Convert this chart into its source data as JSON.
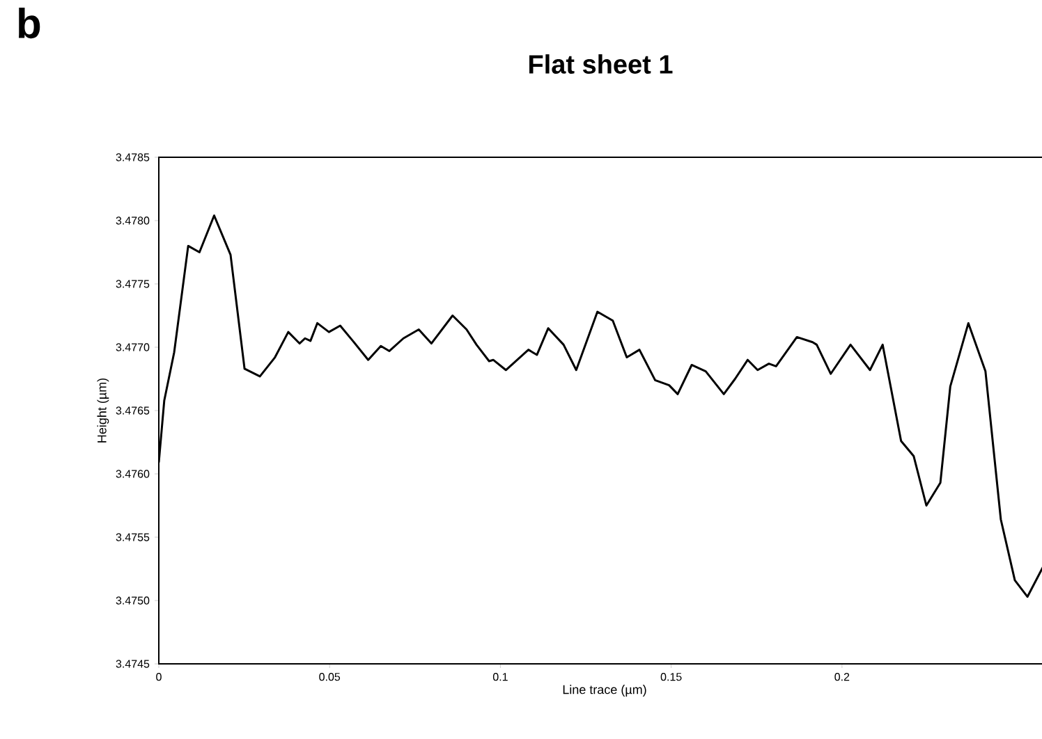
{
  "chart_data": {
    "type": "line",
    "title": "Flat sheet 1",
    "xlabel": "Line trace (µm)",
    "ylabel": "Height  (µm)",
    "annotations": [
      "b"
    ],
    "xlim": [
      0,
      0.261
    ],
    "xticks": [
      0,
      0.05,
      0.1,
      0.15,
      0.2
    ],
    "ylim": [
      3.4745,
      3.4785
    ],
    "yticks": [
      3.4745,
      {
        "value": 3.475,
        "label": "3.4750"
      },
      3.4755,
      {
        "value": 3.476,
        "label": "3.4760"
      },
      3.4765,
      {
        "value": 3.477,
        "label": "3.4770"
      },
      3.4775,
      {
        "value": 3.478,
        "label": "3.4780"
      },
      3.4785
    ],
    "series": [
      {
        "color": "#000000",
        "x": [
          0,
          0.0016,
          0.0045,
          0.0086,
          0.0119,
          0.0162,
          0.021,
          0.0251,
          0.0296,
          0.034,
          0.0379,
          0.0412,
          0.0428,
          0.0444,
          0.0464,
          0.0498,
          0.0531,
          0.0568,
          0.0613,
          0.065,
          0.0675,
          0.0716,
          0.0761,
          0.0798,
          0.086,
          0.0901,
          0.093,
          0.0967,
          0.0979,
          0.1016,
          0.1082,
          0.1107,
          0.114,
          0.1185,
          0.1222,
          0.1284,
          0.1329,
          0.137,
          0.1407,
          0.1453,
          0.1494,
          0.1519,
          0.156,
          0.1601,
          0.1654,
          0.1687,
          0.1724,
          0.1753,
          0.1786,
          0.1807,
          0.1868,
          0.1914,
          0.1926,
          0.1967,
          0.2025,
          0.2082,
          0.2119,
          0.2173,
          0.221,
          0.2247,
          0.2288,
          0.2317,
          0.237,
          0.242,
          0.2465,
          0.2506,
          0.2543,
          0.2605
        ],
        "values": [
          3.47609,
          3.47658,
          3.47696,
          3.4778,
          3.47775,
          3.47804,
          3.47773,
          3.47683,
          3.47677,
          3.47692,
          3.47712,
          3.47703,
          3.47707,
          3.47705,
          3.47719,
          3.47712,
          3.47717,
          3.47705,
          3.4769,
          3.47701,
          3.47697,
          3.47707,
          3.47714,
          3.47703,
          3.47725,
          3.47714,
          3.47702,
          3.47689,
          3.4769,
          3.47682,
          3.47698,
          3.47694,
          3.47715,
          3.47702,
          3.47682,
          3.47728,
          3.47721,
          3.47692,
          3.47698,
          3.47674,
          3.4767,
          3.47663,
          3.47686,
          3.47681,
          3.47663,
          3.47675,
          3.4769,
          3.47682,
          3.47687,
          3.47685,
          3.47708,
          3.47704,
          3.47702,
          3.47679,
          3.47702,
          3.47682,
          3.47702,
          3.47626,
          3.47614,
          3.47575,
          3.47593,
          3.47669,
          3.47719,
          3.47681,
          3.47564,
          3.47516,
          3.47503,
          3.47535
        ]
      }
    ]
  }
}
